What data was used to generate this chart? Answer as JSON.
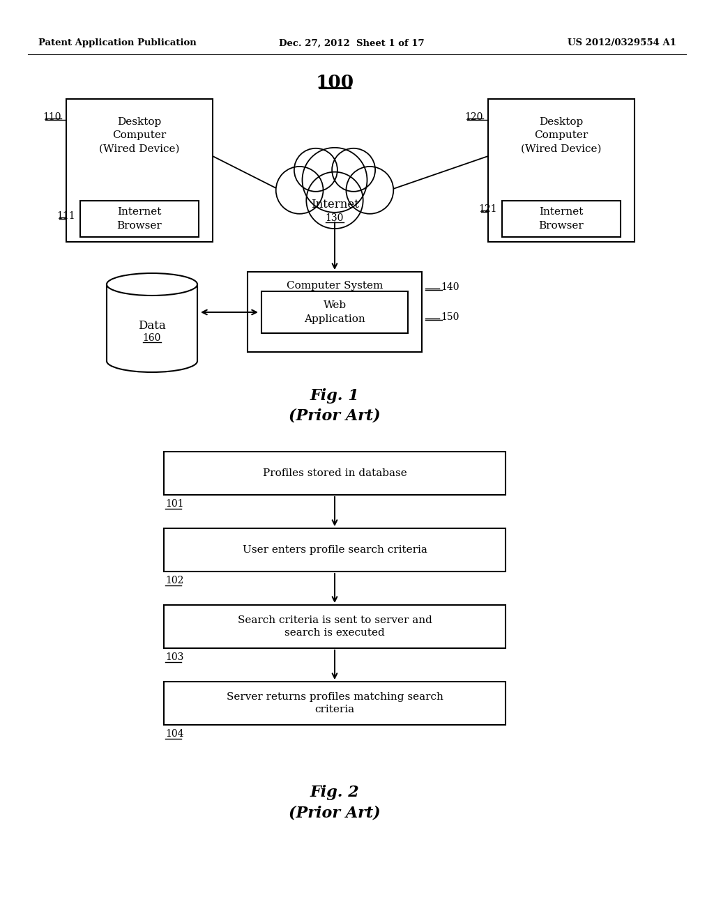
{
  "background_color": "#ffffff",
  "header_left": "Patent Application Publication",
  "header_center": "Dec. 27, 2012  Sheet 1 of 17",
  "header_right": "US 2012/0329554 A1",
  "fig1_title": "100",
  "fig2_caption_line1": "Fig. 2",
  "fig2_caption_line2": "(Prior Art)",
  "fig1_caption_line1": "Fig. 1",
  "fig1_caption_line2": "(Prior Art)",
  "flow_boxes": [
    {
      "label": "101",
      "text": "Profiles stored in database"
    },
    {
      "label": "102",
      "text": "User enters profile search criteria"
    },
    {
      "label": "103",
      "text": "Search criteria is sent to server and\nsearch is executed"
    },
    {
      "label": "104",
      "text": "Server returns profiles matching search\ncriteria"
    }
  ]
}
